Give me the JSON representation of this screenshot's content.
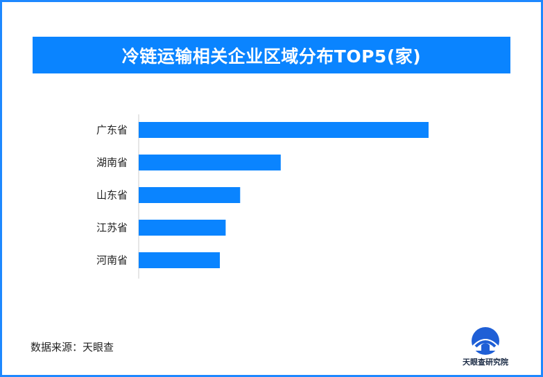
{
  "title": "冷链运输相关企业区域分布TOP5(家)",
  "source": "数据来源：天眼查",
  "logo_text": "天眼查研究院",
  "colors": {
    "bar": "#0a84ff",
    "title_bg": "#0a84ff",
    "border": "#1e88ff",
    "axis": "#cccccc"
  },
  "chart_data": {
    "type": "bar",
    "orientation": "horizontal",
    "title": "冷链运输相关企业区域分布TOP5(家)",
    "categories": [
      "广东省",
      "湖南省",
      "山东省",
      "江苏省",
      "河南省"
    ],
    "values": [
      100,
      49,
      35,
      30,
      28
    ],
    "xlabel": "",
    "ylabel": "",
    "grid": false,
    "legend": "none"
  }
}
